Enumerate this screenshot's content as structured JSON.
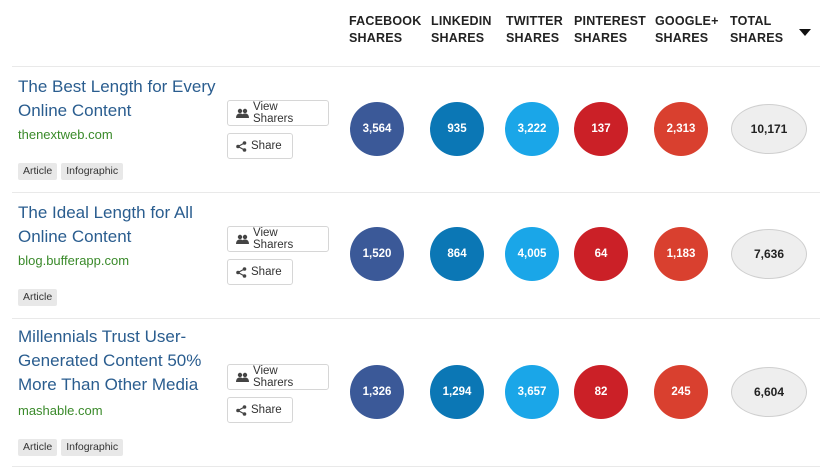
{
  "columns": {
    "facebook": [
      "FACEBOOK",
      "SHARES"
    ],
    "linkedin": [
      "LINKEDIN",
      "SHARES"
    ],
    "twitter": [
      "TWITTER",
      "SHARES"
    ],
    "pinterest": [
      "PINTEREST",
      "SHARES"
    ],
    "googleplus": [
      "GOOGLE+",
      "SHARES"
    ],
    "total": [
      "TOTAL",
      "SHARES"
    ]
  },
  "colors": {
    "facebook": "#3b5998",
    "linkedin": "#0b77b5",
    "twitter": "#1aa6e8",
    "pinterest": "#cb2027",
    "googleplus": "#d9402f",
    "title_link": "#2a5d8f",
    "domain": "#3a8a2a"
  },
  "buttons": {
    "view_sharers": "View Sharers",
    "share": "Share",
    "users_icon": "users-icon",
    "share_icon": "share-icon"
  },
  "rows": [
    {
      "title": "The Best Length for Every Online Content",
      "domain": "thenextweb.com",
      "tags": [
        "Article",
        "Infographic"
      ],
      "facebook": "3,564",
      "linkedin": "935",
      "twitter": "3,222",
      "pinterest": "137",
      "googleplus": "2,313",
      "total": "10,171"
    },
    {
      "title": "The Ideal Length for All Online Content",
      "domain": "blog.bufferapp.com",
      "tags": [
        "Article"
      ],
      "facebook": "1,520",
      "linkedin": "864",
      "twitter": "4,005",
      "pinterest": "64",
      "googleplus": "1,183",
      "total": "7,636"
    },
    {
      "title": "Millennials Trust User-Generated Content 50% More Than Other Media",
      "domain": "mashable.com",
      "tags": [
        "Article",
        "Infographic"
      ],
      "facebook": "1,326",
      "linkedin": "1,294",
      "twitter": "3,657",
      "pinterest": "82",
      "googleplus": "245",
      "total": "6,604"
    }
  ]
}
